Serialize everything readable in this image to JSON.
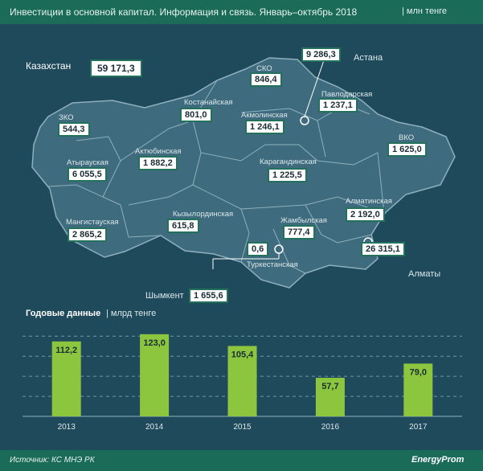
{
  "header": {
    "title": "Инвестиции в основной капитал. Информация и связь. Январь–октябрь 2018",
    "unit": "| млн тенге"
  },
  "kazakhstan": {
    "label": "Казахстан",
    "value": "59 171,3"
  },
  "regions": {
    "sko": {
      "label": "СКО",
      "value": "846,4"
    },
    "astana": {
      "label": "Астана",
      "value": "9 286,3"
    },
    "pavlodar": {
      "label": "Павлодарская",
      "value": "1 237,1"
    },
    "kostanay": {
      "label": "Костанайская",
      "value": "801,0"
    },
    "akmola": {
      "label": "Акмолинская",
      "value": "1 246,1"
    },
    "zko": {
      "label": "ЗКО",
      "value": "544,3"
    },
    "vko": {
      "label": "ВКО",
      "value": "1 625,0"
    },
    "atyrau": {
      "label": "Атырауская",
      "value": "6 055,5"
    },
    "aktobe": {
      "label": "Актюбинская",
      "value": "1 882,2"
    },
    "karaganda": {
      "label": "Карагандинская",
      "value": "1 225,5"
    },
    "almaty_obl": {
      "label": "Алматинская",
      "value": "2 192,0"
    },
    "mangystau": {
      "label": "Мангистауская",
      "value": "2 865,2"
    },
    "kyzylorda": {
      "label": "Кызылординская",
      "value": "615,8"
    },
    "zhambyl": {
      "label": "Жамбылская",
      "value": "777,4"
    },
    "turkestan": {
      "label": "Туркестанская",
      "value": "0,6"
    },
    "almaty": {
      "label": "Алматы",
      "value": "26 315,1"
    },
    "shymkent": {
      "label": "Шымкент",
      "value": "1 655,6"
    }
  },
  "annual": {
    "title": "Годовые данные",
    "unit": "| млрд тенге"
  },
  "chart_data": {
    "type": "bar",
    "title": "Годовые данные",
    "ylabel": "млрд тенге",
    "categories": [
      "2013",
      "2014",
      "2015",
      "2016",
      "2017"
    ],
    "values": [
      112.2,
      123.0,
      105.4,
      57.7,
      79.0
    ],
    "value_labels": [
      "112,2",
      "123,0",
      "105,4",
      "57,7",
      "79,0"
    ],
    "ylim": [
      0,
      130
    ],
    "bar_color": "#8cc63f",
    "grid": true
  },
  "footer": {
    "source": "Источник: КС МНЭ РК",
    "logo": "EnergyProm"
  },
  "colors": {
    "background": "#1f4a5c",
    "header": "#1a6b57",
    "map_fill": "#3e6b7d",
    "map_stroke": "#8fb0bd",
    "value_border": "#24715b"
  }
}
